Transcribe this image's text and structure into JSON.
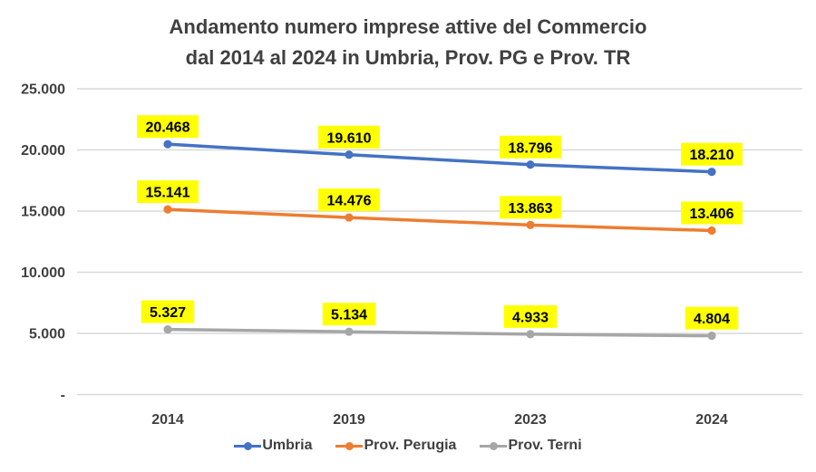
{
  "title_line1": "Andamento numero imprese attive del Commercio",
  "title_line2": "dal 2014 al 2024 in Umbria, Prov. PG e Prov. TR",
  "chart_data": {
    "type": "line",
    "title": "Andamento numero imprese attive del Commercio dal 2014 al 2024 in Umbria, Prov. PG e Prov. TR",
    "categories": [
      "2014",
      "2019",
      "2023",
      "2024"
    ],
    "series": [
      {
        "name": "Umbria",
        "color": "#4472C4",
        "values": [
          20468,
          19610,
          18796,
          18210
        ],
        "labels": [
          "20.468",
          "19.610",
          "18.796",
          "18.210"
        ]
      },
      {
        "name": "Prov. Perugia",
        "color": "#ED7D31",
        "values": [
          15141,
          14476,
          13863,
          13406
        ],
        "labels": [
          "15.141",
          "14.476",
          "13.863",
          "13.406"
        ]
      },
      {
        "name": "Prov. Terni",
        "color": "#A6A6A6",
        "values": [
          5327,
          5134,
          4933,
          4804
        ],
        "labels": [
          "5.327",
          "5.134",
          "4.933",
          "4.804"
        ]
      }
    ],
    "y_ticks": [
      {
        "label": "25.000",
        "value": 25000
      },
      {
        "label": "20.000",
        "value": 20000
      },
      {
        "label": "15.000",
        "value": 15000
      },
      {
        "label": "10.000",
        "value": 10000
      },
      {
        "label": "5.000",
        "value": 5000
      },
      {
        "label": "-",
        "value": 0
      }
    ],
    "ylim": [
      0,
      25000
    ],
    "xlabel": "",
    "ylabel": "",
    "grid": true,
    "legend_position": "bottom",
    "data_labels_visible": true,
    "colors": {
      "gridline": "#D9D9D9",
      "axis_text": "#404040",
      "data_label_bg": "#FFFF00",
      "data_label_text": "#000000"
    }
  }
}
